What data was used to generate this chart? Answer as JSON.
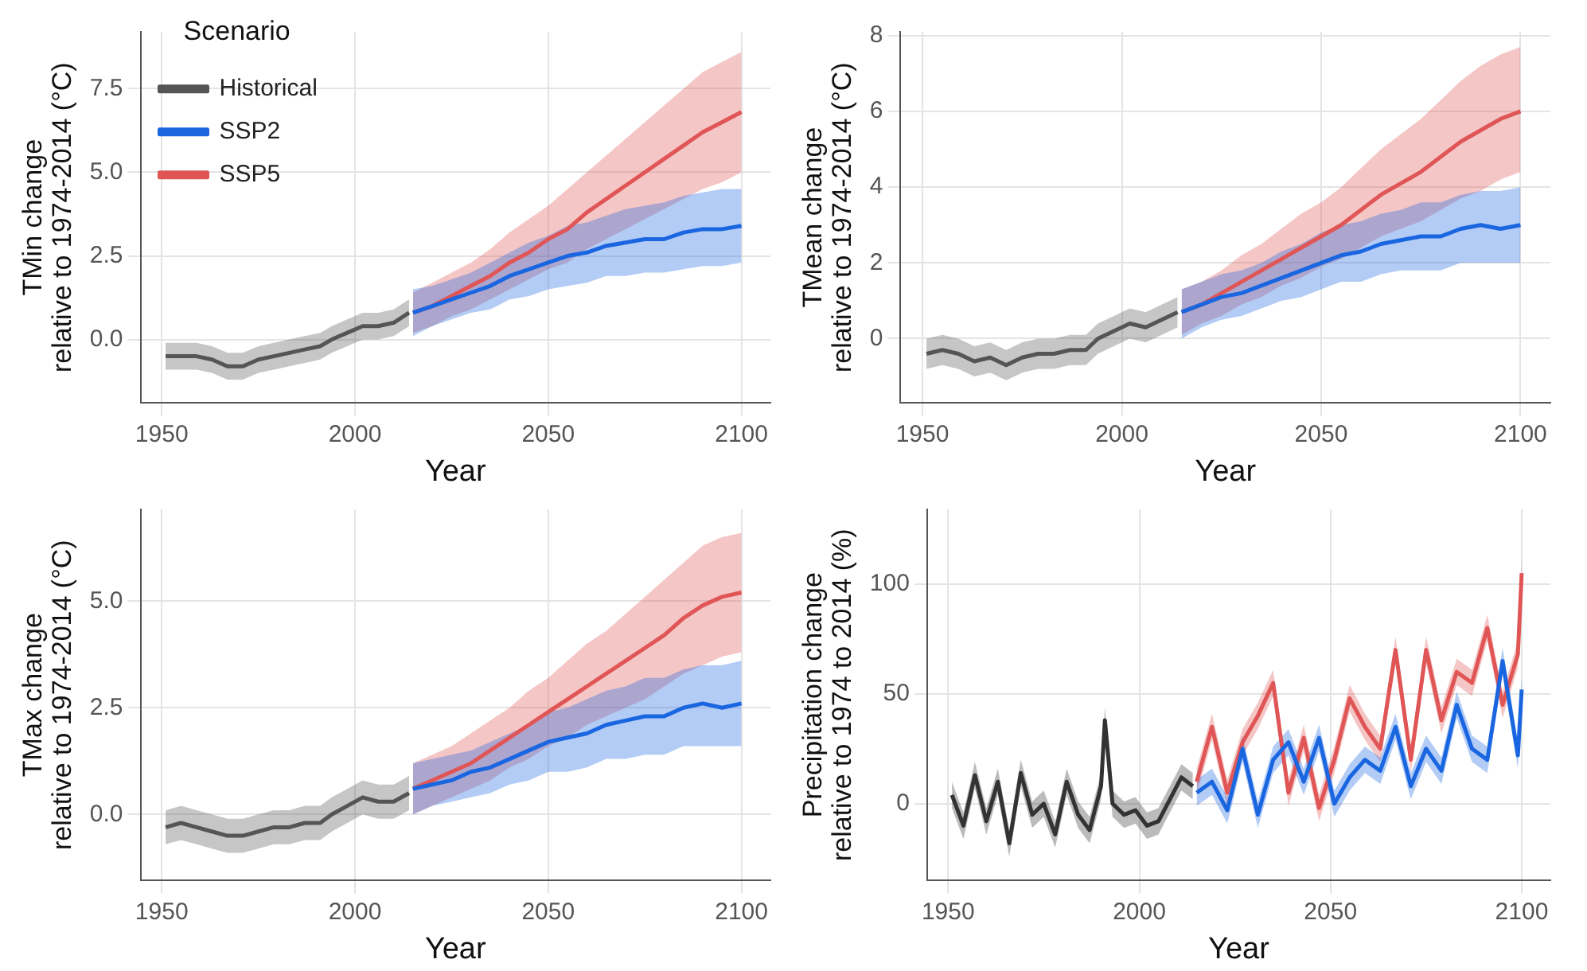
{
  "chart_data": [
    {
      "type": "line",
      "ylabel": "TMin change\nrelative to 1974-2014 (°C)",
      "xlabel": "Year",
      "legend": "top left",
      "legend_title": "Scenario",
      "grid": true,
      "xlim": [
        1944.5,
        2107.5
      ],
      "xticks": [
        1950,
        2000,
        2050,
        2100
      ],
      "ylim": [
        -1.9,
        9.2
      ],
      "yticks": [
        {
          "value": 0,
          "label": "0.0"
        },
        {
          "value": 2.5,
          "label": "2.5"
        },
        {
          "value": 5,
          "label": "5.0"
        },
        {
          "value": 7.5,
          "label": "7.5"
        }
      ],
      "series": [
        {
          "name": "Historical",
          "color": "#555555",
          "x": [
            1951,
            1955,
            1959,
            1963,
            1967,
            1971,
            1975,
            1979,
            1983,
            1987,
            1991,
            1994,
            1998,
            2002,
            2006,
            2010,
            2014
          ],
          "values": [
            -0.5,
            -0.5,
            -0.5,
            -0.6,
            -0.8,
            -0.8,
            -0.6,
            -0.5,
            -0.4,
            -0.3,
            -0.2,
            0.0,
            0.2,
            0.4,
            0.4,
            0.5,
            0.8
          ],
          "lower": [
            -0.9,
            -0.9,
            -0.9,
            -1.0,
            -1.2,
            -1.2,
            -1.0,
            -0.9,
            -0.8,
            -0.7,
            -0.6,
            -0.4,
            -0.2,
            0.0,
            0.0,
            0.1,
            0.4
          ],
          "upper": [
            -0.1,
            -0.1,
            -0.1,
            -0.2,
            -0.4,
            -0.4,
            -0.2,
            -0.1,
            0.0,
            0.1,
            0.2,
            0.4,
            0.6,
            0.8,
            0.8,
            0.9,
            1.2
          ]
        },
        {
          "name": "SSP2",
          "color": "#1a66e0",
          "x": [
            2015,
            2020,
            2025,
            2030,
            2035,
            2040,
            2045,
            2050,
            2055,
            2060,
            2065,
            2070,
            2075,
            2080,
            2085,
            2090,
            2095,
            2100
          ],
          "values": [
            0.8,
            1.0,
            1.2,
            1.4,
            1.6,
            1.9,
            2.1,
            2.3,
            2.5,
            2.6,
            2.8,
            2.9,
            3.0,
            3.0,
            3.2,
            3.3,
            3.3,
            3.4
          ],
          "lower": [
            0.1,
            0.4,
            0.6,
            0.8,
            0.9,
            1.2,
            1.3,
            1.5,
            1.6,
            1.7,
            1.9,
            1.9,
            2.0,
            2.0,
            2.1,
            2.2,
            2.2,
            2.3
          ],
          "upper": [
            1.5,
            1.6,
            1.8,
            2.0,
            2.3,
            2.6,
            2.9,
            3.1,
            3.4,
            3.5,
            3.7,
            3.9,
            4.0,
            4.1,
            4.3,
            4.4,
            4.5,
            4.5
          ]
        },
        {
          "name": "SSP5",
          "color": "#e05555",
          "x": [
            2015,
            2020,
            2025,
            2030,
            2035,
            2040,
            2045,
            2050,
            2055,
            2060,
            2065,
            2070,
            2075,
            2080,
            2085,
            2090,
            2095,
            2100
          ],
          "values": [
            0.8,
            1.0,
            1.3,
            1.6,
            1.9,
            2.3,
            2.6,
            3.0,
            3.3,
            3.8,
            4.2,
            4.6,
            5.0,
            5.4,
            5.8,
            6.2,
            6.5,
            6.8
          ],
          "lower": [
            0.2,
            0.4,
            0.7,
            0.9,
            1.2,
            1.5,
            1.8,
            2.1,
            2.3,
            2.7,
            3.0,
            3.3,
            3.6,
            3.9,
            4.2,
            4.5,
            4.7,
            5.0
          ],
          "upper": [
            1.4,
            1.7,
            2.0,
            2.3,
            2.7,
            3.2,
            3.6,
            4.0,
            4.5,
            5.0,
            5.5,
            6.0,
            6.5,
            7.0,
            7.5,
            8.0,
            8.3,
            8.6
          ]
        }
      ]
    },
    {
      "type": "line",
      "ylabel": "TMean change\nrelative to 1974-2014 (°C)",
      "xlabel": "Year",
      "grid": true,
      "xlim": [
        1944.5,
        2107.5
      ],
      "xticks": [
        1950,
        2000,
        2050,
        2100
      ],
      "ylim": [
        -1.7,
        8.1
      ],
      "yticks": [
        0,
        2,
        4,
        6,
        8
      ],
      "series": [
        {
          "color": "#555555",
          "x": [
            1951,
            1955,
            1959,
            1963,
            1967,
            1971,
            1975,
            1979,
            1983,
            1987,
            1991,
            1994,
            1998,
            2002,
            2006,
            2010,
            2014
          ],
          "values": [
            -0.4,
            -0.3,
            -0.4,
            -0.6,
            -0.5,
            -0.7,
            -0.5,
            -0.4,
            -0.4,
            -0.3,
            -0.3,
            0.0,
            0.2,
            0.4,
            0.3,
            0.5,
            0.7
          ],
          "lower": [
            -0.8,
            -0.7,
            -0.8,
            -1.0,
            -0.9,
            -1.1,
            -0.9,
            -0.8,
            -0.8,
            -0.7,
            -0.7,
            -0.4,
            -0.2,
            0.0,
            -0.1,
            0.1,
            0.3
          ],
          "upper": [
            0.0,
            0.1,
            0.0,
            -0.2,
            -0.1,
            -0.3,
            -0.1,
            0.0,
            0.0,
            0.1,
            0.1,
            0.4,
            0.6,
            0.8,
            0.7,
            0.9,
            1.1
          ]
        },
        {
          "color": "#1a66e0",
          "x": [
            2015,
            2020,
            2025,
            2030,
            2035,
            2040,
            2045,
            2050,
            2055,
            2060,
            2065,
            2070,
            2075,
            2080,
            2085,
            2090,
            2095,
            2100
          ],
          "values": [
            0.7,
            0.9,
            1.1,
            1.2,
            1.4,
            1.6,
            1.8,
            2.0,
            2.2,
            2.3,
            2.5,
            2.6,
            2.7,
            2.7,
            2.9,
            3.0,
            2.9,
            3.0
          ],
          "lower": [
            0.0,
            0.3,
            0.5,
            0.6,
            0.8,
            1.0,
            1.1,
            1.3,
            1.5,
            1.5,
            1.7,
            1.8,
            1.8,
            1.8,
            2.0,
            2.0,
            2.0,
            2.0
          ],
          "upper": [
            1.3,
            1.5,
            1.7,
            1.8,
            2.0,
            2.3,
            2.5,
            2.8,
            3.0,
            3.1,
            3.3,
            3.4,
            3.6,
            3.6,
            3.8,
            3.9,
            3.9,
            4.0
          ]
        },
        {
          "color": "#e05555",
          "x": [
            2015,
            2020,
            2025,
            2030,
            2035,
            2040,
            2045,
            2050,
            2055,
            2060,
            2065,
            2070,
            2075,
            2080,
            2085,
            2090,
            2095,
            2100
          ],
          "values": [
            0.7,
            0.9,
            1.2,
            1.5,
            1.8,
            2.1,
            2.4,
            2.7,
            3.0,
            3.4,
            3.8,
            4.1,
            4.4,
            4.8,
            5.2,
            5.5,
            5.8,
            6.0
          ],
          "lower": [
            0.1,
            0.4,
            0.6,
            0.9,
            1.1,
            1.4,
            1.6,
            1.9,
            2.1,
            2.4,
            2.7,
            2.9,
            3.1,
            3.4,
            3.7,
            3.9,
            4.2,
            4.4
          ],
          "upper": [
            1.3,
            1.5,
            1.8,
            2.2,
            2.5,
            2.9,
            3.3,
            3.6,
            4.0,
            4.5,
            5.0,
            5.4,
            5.8,
            6.3,
            6.8,
            7.2,
            7.5,
            7.7
          ]
        }
      ]
    },
    {
      "type": "line",
      "ylabel": "TMax change\nrelative to 1974-2014 (°C)",
      "xlabel": "Year",
      "grid": true,
      "xlim": [
        1944.5,
        2107.5
      ],
      "xticks": [
        1950,
        2000,
        2050,
        2100
      ],
      "ylim": [
        -1.55,
        7.15
      ],
      "yticks": [
        {
          "value": 0,
          "label": "0.0"
        },
        {
          "value": 2.5,
          "label": "2.5"
        },
        {
          "value": 5,
          "label": "5.0"
        }
      ],
      "series": [
        {
          "color": "#555555",
          "x": [
            1951,
            1955,
            1959,
            1963,
            1967,
            1971,
            1975,
            1979,
            1983,
            1987,
            1991,
            1994,
            1998,
            2002,
            2006,
            2010,
            2014
          ],
          "values": [
            -0.3,
            -0.2,
            -0.3,
            -0.4,
            -0.5,
            -0.5,
            -0.4,
            -0.3,
            -0.3,
            -0.2,
            -0.2,
            0.0,
            0.2,
            0.4,
            0.3,
            0.3,
            0.5
          ],
          "lower": [
            -0.7,
            -0.6,
            -0.7,
            -0.8,
            -0.9,
            -0.9,
            -0.8,
            -0.7,
            -0.7,
            -0.6,
            -0.6,
            -0.4,
            -0.2,
            0.0,
            -0.1,
            -0.1,
            0.1
          ],
          "upper": [
            0.1,
            0.2,
            0.1,
            0.0,
            -0.1,
            -0.1,
            0.0,
            0.1,
            0.1,
            0.2,
            0.2,
            0.4,
            0.6,
            0.8,
            0.7,
            0.7,
            0.9
          ]
        },
        {
          "color": "#1a66e0",
          "x": [
            2015,
            2020,
            2025,
            2030,
            2035,
            2040,
            2045,
            2050,
            2055,
            2060,
            2065,
            2070,
            2075,
            2080,
            2085,
            2090,
            2095,
            2100
          ],
          "values": [
            0.6,
            0.7,
            0.8,
            1.0,
            1.1,
            1.3,
            1.5,
            1.7,
            1.8,
            1.9,
            2.1,
            2.2,
            2.3,
            2.3,
            2.5,
            2.6,
            2.5,
            2.6
          ],
          "lower": [
            0.0,
            0.2,
            0.3,
            0.4,
            0.5,
            0.7,
            0.8,
            1.0,
            1.0,
            1.1,
            1.3,
            1.3,
            1.4,
            1.4,
            1.6,
            1.6,
            1.6,
            1.6
          ],
          "upper": [
            1.2,
            1.3,
            1.4,
            1.5,
            1.7,
            1.9,
            2.1,
            2.4,
            2.5,
            2.7,
            2.9,
            3.0,
            3.2,
            3.2,
            3.4,
            3.5,
            3.5,
            3.6
          ]
        },
        {
          "color": "#e05555",
          "x": [
            2015,
            2020,
            2025,
            2030,
            2035,
            2040,
            2045,
            2050,
            2055,
            2060,
            2065,
            2070,
            2075,
            2080,
            2085,
            2090,
            2095,
            2100
          ],
          "values": [
            0.6,
            0.8,
            1.0,
            1.2,
            1.5,
            1.8,
            2.1,
            2.4,
            2.7,
            3.0,
            3.3,
            3.6,
            3.9,
            4.2,
            4.6,
            4.9,
            5.1,
            5.2
          ],
          "lower": [
            0.0,
            0.2,
            0.4,
            0.6,
            0.8,
            1.1,
            1.3,
            1.6,
            1.8,
            2.1,
            2.3,
            2.5,
            2.7,
            3.0,
            3.3,
            3.5,
            3.7,
            3.8
          ],
          "upper": [
            1.2,
            1.4,
            1.6,
            1.9,
            2.2,
            2.5,
            2.9,
            3.2,
            3.6,
            4.0,
            4.3,
            4.7,
            5.1,
            5.5,
            5.9,
            6.3,
            6.5,
            6.6
          ]
        }
      ]
    },
    {
      "type": "line",
      "ylabel": "Precipitation change\nrelative to 1974 to 2014 (%)",
      "xlabel": "Year",
      "grid": true,
      "xlim": [
        1944.5,
        2107.5
      ],
      "xticks": [
        1950,
        2000,
        2050,
        2100
      ],
      "ylim": [
        -35,
        134
      ],
      "yticks": [
        0,
        50,
        100
      ],
      "series": [
        {
          "color": "#333333",
          "x": [
            1951,
            1954,
            1957,
            1960,
            1963,
            1966,
            1969,
            1972,
            1975,
            1978,
            1981,
            1984,
            1987,
            1990,
            1991,
            1993,
            1996,
            1999,
            2002,
            2005,
            2008,
            2011,
            2014
          ],
          "values": [
            4,
            -10,
            13,
            -8,
            10,
            -18,
            14,
            -5,
            0,
            -14,
            10,
            -5,
            -12,
            8,
            38,
            0,
            -5,
            -3,
            -10,
            -8,
            2,
            12,
            8
          ],
          "lower": [
            -2,
            -16,
            7,
            -14,
            4,
            -24,
            8,
            -11,
            -6,
            -20,
            4,
            -11,
            -18,
            2,
            32,
            -6,
            -11,
            -9,
            -16,
            -14,
            -4,
            6,
            2
          ],
          "upper": [
            10,
            -4,
            19,
            -2,
            16,
            -12,
            20,
            1,
            6,
            -8,
            16,
            1,
            -6,
            14,
            44,
            6,
            1,
            3,
            -4,
            -2,
            8,
            18,
            14
          ]
        },
        {
          "color": "#1a66e0",
          "x": [
            2015,
            2019,
            2023,
            2027,
            2031,
            2035,
            2039,
            2043,
            2047,
            2051,
            2055,
            2059,
            2063,
            2067,
            2071,
            2075,
            2079,
            2083,
            2087,
            2091,
            2095,
            2099,
            2100
          ],
          "values": [
            5,
            10,
            -3,
            25,
            -5,
            20,
            28,
            10,
            30,
            0,
            12,
            20,
            15,
            35,
            8,
            25,
            15,
            45,
            25,
            20,
            65,
            22,
            52
          ],
          "lower": [
            -1,
            4,
            -9,
            19,
            -11,
            14,
            22,
            4,
            24,
            -6,
            6,
            14,
            9,
            29,
            2,
            19,
            9,
            39,
            19,
            14,
            59,
            16,
            46
          ],
          "upper": [
            11,
            16,
            3,
            31,
            1,
            26,
            34,
            16,
            36,
            6,
            18,
            26,
            21,
            41,
            14,
            31,
            21,
            51,
            31,
            26,
            71,
            28,
            58
          ]
        },
        {
          "color": "#e05555",
          "x": [
            2015,
            2019,
            2023,
            2027,
            2031,
            2035,
            2039,
            2043,
            2047,
            2051,
            2055,
            2059,
            2063,
            2067,
            2071,
            2075,
            2079,
            2083,
            2087,
            2091,
            2095,
            2099,
            2100
          ],
          "values": [
            10,
            35,
            5,
            28,
            40,
            55,
            5,
            30,
            -2,
            20,
            48,
            35,
            25,
            70,
            20,
            70,
            38,
            60,
            55,
            80,
            45,
            68,
            105
          ],
          "lower": [
            4,
            29,
            -1,
            22,
            34,
            49,
            -1,
            24,
            -8,
            14,
            42,
            29,
            19,
            64,
            14,
            64,
            32,
            54,
            49,
            74,
            39,
            62,
            99
          ],
          "upper": [
            16,
            41,
            11,
            34,
            46,
            61,
            11,
            36,
            4,
            26,
            54,
            41,
            31,
            76,
            26,
            76,
            44,
            66,
            61,
            86,
            51,
            74,
            111
          ]
        }
      ]
    }
  ]
}
